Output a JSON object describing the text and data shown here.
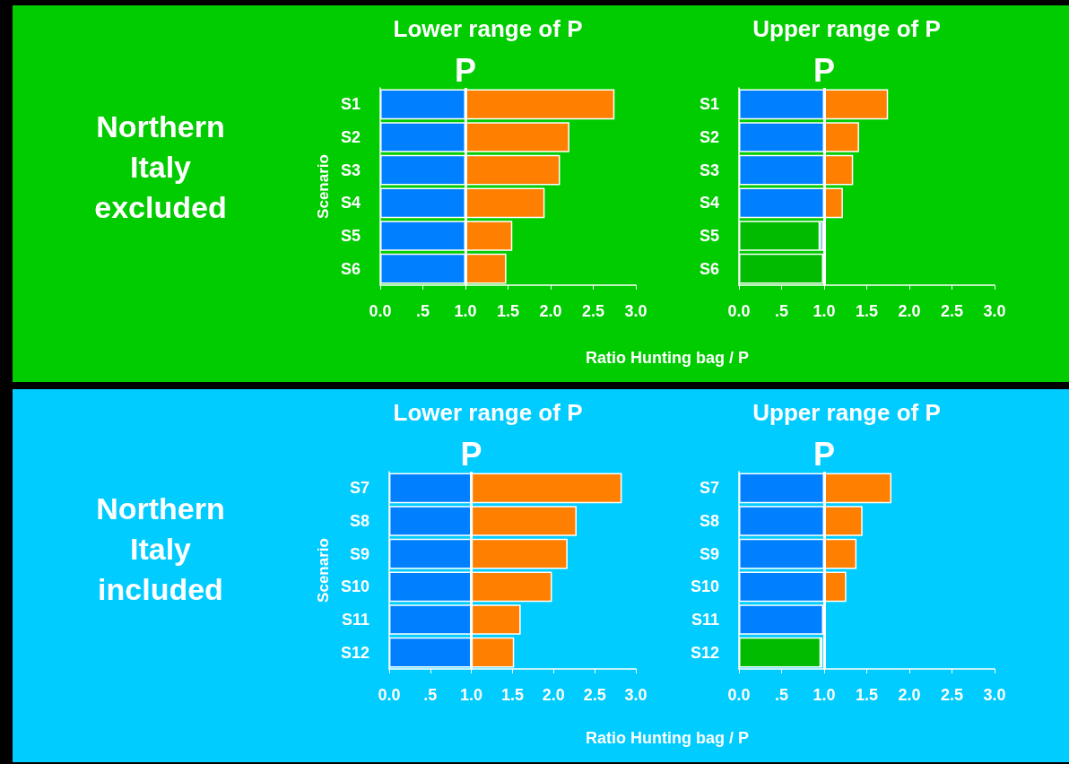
{
  "chart_data": [
    {
      "type": "bar",
      "orientation": "horizontal",
      "stacked": true,
      "title": "Lower range of P",
      "ylabel": "Scenario",
      "annotations": [
        "Northern Italy excluded"
      ],
      "categories": [
        "S1",
        "S2",
        "S3",
        "S4",
        "S5",
        "S6"
      ],
      "series": [
        {
          "color": "#0080ff",
          "values": [
            1,
            1,
            1,
            1,
            1,
            1
          ]
        },
        {
          "color": "#ff8000",
          "values": [
            1.75,
            1.22,
            1.11,
            0.93,
            0.55,
            0.48
          ]
        }
      ],
      "xlim": [
        0,
        3
      ],
      "xticks": [
        {
          "value": 0,
          "label": "0.0"
        },
        {
          "value": 0.5,
          "label": ".5"
        },
        {
          "value": 1,
          "label": "1.0"
        },
        {
          "value": 1.5,
          "label": "1.5"
        },
        {
          "value": 2,
          "label": "2.0"
        },
        {
          "value": 2.5,
          "label": "2.5"
        },
        {
          "value": 3,
          "label": "3.0"
        }
      ],
      "ref_lines": [
        {
          "axis": "x",
          "value": 1,
          "label": "P",
          "color": "#ffffff"
        }
      ],
      "grid": false
    },
    {
      "type": "bar",
      "orientation": "horizontal",
      "stacked": true,
      "title": "Upper range of P",
      "xlabel": "Ratio Hunting bag / P",
      "categories": [
        "S1",
        "S2",
        "S3",
        "S4",
        "S5",
        "S6"
      ],
      "series": [
        {
          "color": "#00bb00",
          "values": [
            null,
            null,
            null,
            null,
            0.95,
            0.99
          ]
        },
        {
          "color": "#0080ff",
          "values": [
            1,
            1,
            1,
            1,
            0.04,
            null
          ]
        },
        {
          "color": "#ff8000",
          "values": [
            0.75,
            0.41,
            0.34,
            0.22,
            null,
            null
          ]
        }
      ],
      "xlim": [
        0,
        3
      ],
      "xticks": [
        {
          "value": 0,
          "label": "0.0"
        },
        {
          "value": 0.5,
          "label": ".5"
        },
        {
          "value": 1,
          "label": "1.0"
        },
        {
          "value": 1.5,
          "label": "1.5"
        },
        {
          "value": 2,
          "label": "2.0"
        },
        {
          "value": 2.5,
          "label": "2.5"
        },
        {
          "value": 3,
          "label": "3.0"
        }
      ],
      "ref_lines": [
        {
          "axis": "x",
          "value": 1,
          "label": "P",
          "color": "#ffffff"
        }
      ],
      "grid": false
    },
    {
      "type": "bar",
      "orientation": "horizontal",
      "stacked": true,
      "title": "Lower range of P",
      "ylabel": "Scenario",
      "annotations": [
        "Northern Italy included"
      ],
      "categories": [
        "S7",
        "S8",
        "S9",
        "S10",
        "S11",
        "S12"
      ],
      "series": [
        {
          "color": "#0080ff",
          "values": [
            1,
            1,
            1,
            1,
            1,
            1
          ]
        },
        {
          "color": "#ff8000",
          "values": [
            1.83,
            1.28,
            1.17,
            0.98,
            0.6,
            0.52
          ]
        }
      ],
      "xlim": [
        0,
        3
      ],
      "xticks": [
        {
          "value": 0,
          "label": "0.0"
        },
        {
          "value": 0.5,
          "label": ".5"
        },
        {
          "value": 1,
          "label": "1.0"
        },
        {
          "value": 1.5,
          "label": "1.5"
        },
        {
          "value": 2,
          "label": "2.0"
        },
        {
          "value": 2.5,
          "label": "2.5"
        },
        {
          "value": 3,
          "label": "3.0"
        }
      ],
      "ref_lines": [
        {
          "axis": "x",
          "value": 1,
          "label": "P",
          "color": "#ffffff"
        }
      ],
      "grid": false
    },
    {
      "type": "bar",
      "orientation": "horizontal",
      "stacked": true,
      "title": "Upper range of P",
      "xlabel": "Ratio Hunting bag / P",
      "categories": [
        "S7",
        "S8",
        "S9",
        "S10",
        "S11",
        "S12"
      ],
      "series": [
        {
          "color": "#00bb00",
          "values": [
            null,
            null,
            null,
            null,
            null,
            0.96
          ]
        },
        {
          "color": "#0080ff",
          "values": [
            1,
            1,
            1,
            1,
            0.99,
            0.02
          ]
        },
        {
          "color": "#ff8000",
          "values": [
            0.79,
            0.45,
            0.38,
            0.26,
            null,
            null
          ]
        }
      ],
      "xlim": [
        0,
        3
      ],
      "xticks": [
        {
          "value": 0,
          "label": "0.0"
        },
        {
          "value": 0.5,
          "label": ".5"
        },
        {
          "value": 1,
          "label": "1.0"
        },
        {
          "value": 1.5,
          "label": "1.5"
        },
        {
          "value": 2,
          "label": "2.0"
        },
        {
          "value": 2.5,
          "label": "2.5"
        },
        {
          "value": 3,
          "label": "3.0"
        }
      ],
      "ref_lines": [
        {
          "axis": "x",
          "value": 1,
          "label": "P",
          "color": "#ffffff"
        }
      ],
      "grid": false
    }
  ]
}
